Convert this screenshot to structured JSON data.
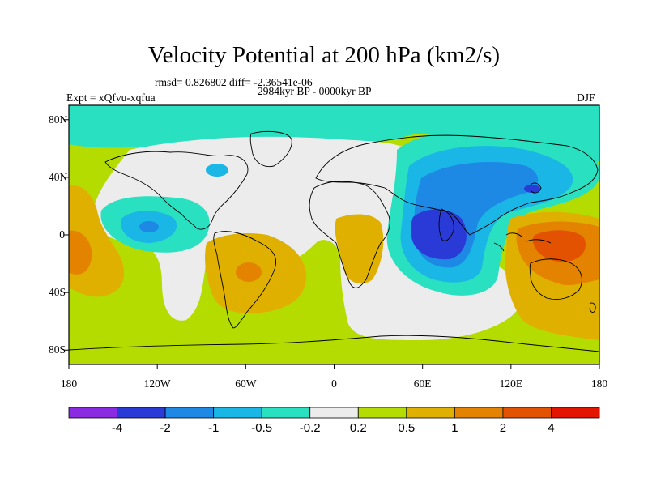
{
  "figure": {
    "title": "Velocity Potential at 200 hPa (km2/s)",
    "stats": "rmsd= 0.826802 diff= -2.36541e-06",
    "experiment": "Expt = xQfvu-xqfua",
    "period": "2984kyr BP - 0000kyr BP",
    "season": "DJF"
  },
  "map": {
    "lat_ticks": [
      {
        "label": "80N",
        "lat": 80
      },
      {
        "label": "40N",
        "lat": 40
      },
      {
        "label": "0",
        "lat": 0
      },
      {
        "label": "40S",
        "lat": -40
      },
      {
        "label": "80S",
        "lat": -80
      }
    ],
    "lon_ticks": [
      {
        "label": "180",
        "lon": -180
      },
      {
        "label": "120W",
        "lon": -120
      },
      {
        "label": "60W",
        "lon": -60
      },
      {
        "label": "0",
        "lon": 0
      },
      {
        "label": "60E",
        "lon": 60
      },
      {
        "label": "120E",
        "lon": 120
      },
      {
        "label": "180",
        "lon": 180
      }
    ]
  },
  "colorbar": {
    "colors": [
      "#8a2be2",
      "#2a3ad6",
      "#1e88e5",
      "#1ab6e6",
      "#29e0c0",
      "#ececec",
      "#b5dc00",
      "#e0b000",
      "#e38300",
      "#e35200",
      "#e31400"
    ],
    "labels": [
      "-4",
      "-2",
      "-1",
      "-0.5",
      "-0.2",
      "0.2",
      "0.5",
      "1",
      "2",
      "4"
    ]
  },
  "colors": {
    "land_outline": "#000000",
    "frame": "#000000"
  }
}
